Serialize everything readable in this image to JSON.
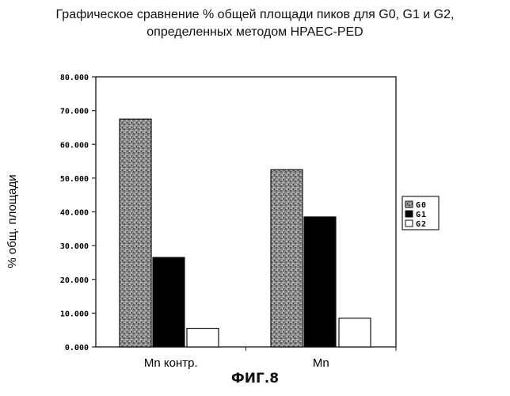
{
  "title": {
    "line1": "Графическое сравнение % общей площади пиков для G0, G1 и G2,",
    "line2": "определенных методом HPAEC-PED"
  },
  "figure_label": "ФИГ.8",
  "chart_data": {
    "type": "bar",
    "categories": [
      "Mn контр.",
      "Mn"
    ],
    "series": [
      {
        "name": "G0",
        "values": [
          67.5,
          52.5
        ],
        "color": "#8f8f8f",
        "pattern": "mottled"
      },
      {
        "name": "G1",
        "values": [
          26.5,
          38.5
        ],
        "color": "#000000",
        "pattern": "solid"
      },
      {
        "name": "G2",
        "values": [
          5.5,
          8.5
        ],
        "color": "#ffffff",
        "pattern": "none"
      }
    ],
    "ylabel": "% общ. площади",
    "xlabel": "",
    "yticks": [
      "0.000",
      "10.000",
      "20.000",
      "30.000",
      "40.000",
      "50.000",
      "60.000",
      "70.000",
      "80.000"
    ],
    "ylim": [
      0,
      80
    ],
    "grid": false,
    "legend": "right"
  }
}
